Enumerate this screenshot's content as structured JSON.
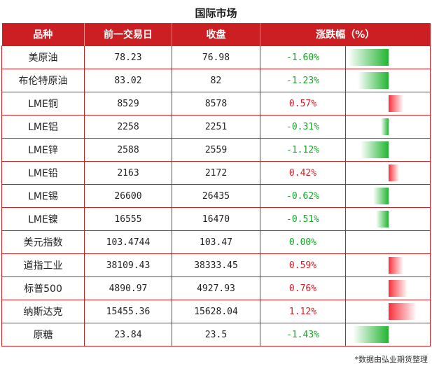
{
  "title": "国际市场",
  "headers": [
    "品种",
    "前一交易日",
    "收盘",
    "涨跌幅（%）"
  ],
  "rows": [
    {
      "name": "美原油",
      "prev": "78.23",
      "close": "76.98",
      "change": "-1.60%",
      "pct": -1.6
    },
    {
      "name": "布伦特原油",
      "prev": "83.02",
      "close": "82",
      "change": "-1.23%",
      "pct": -1.23
    },
    {
      "name": "LME铜",
      "prev": "8529",
      "close": "8578",
      "change": "0.57%",
      "pct": 0.57
    },
    {
      "name": "LME铝",
      "prev": "2258",
      "close": "2251",
      "change": "-0.31%",
      "pct": -0.31
    },
    {
      "name": "LME锌",
      "prev": "2588",
      "close": "2559",
      "change": "-1.12%",
      "pct": -1.12
    },
    {
      "name": "LME铅",
      "prev": "2163",
      "close": "2172",
      "change": "0.42%",
      "pct": 0.42
    },
    {
      "name": "LME锡",
      "prev": "26600",
      "close": "26435",
      "change": "-0.62%",
      "pct": -0.62
    },
    {
      "name": "LME镍",
      "prev": "16555",
      "close": "16470",
      "change": "-0.51%",
      "pct": -0.51
    },
    {
      "name": "美元指数",
      "prev": "103.4744",
      "close": "103.47",
      "change": "0.00%",
      "pct": 0.0
    },
    {
      "name": "道指工业",
      "prev": "38109.43",
      "close": "38333.45",
      "change": "0.59%",
      "pct": 0.59
    },
    {
      "name": "标普500",
      "prev": "4890.97",
      "close": "4927.93",
      "change": "0.76%",
      "pct": 0.76
    },
    {
      "name": "纳斯达克",
      "prev": "15455.36",
      "close": "15628.04",
      "change": "1.12%",
      "pct": 1.12
    },
    {
      "name": "原糖",
      "prev": "23.84",
      "close": "23.5",
      "change": "-1.43%",
      "pct": -1.43
    }
  ],
  "colors": {
    "header_bg": "#cc1f24",
    "up": "#d42027",
    "down": "#1aa32a"
  },
  "footnote": "*数据由弘业期货整理"
}
